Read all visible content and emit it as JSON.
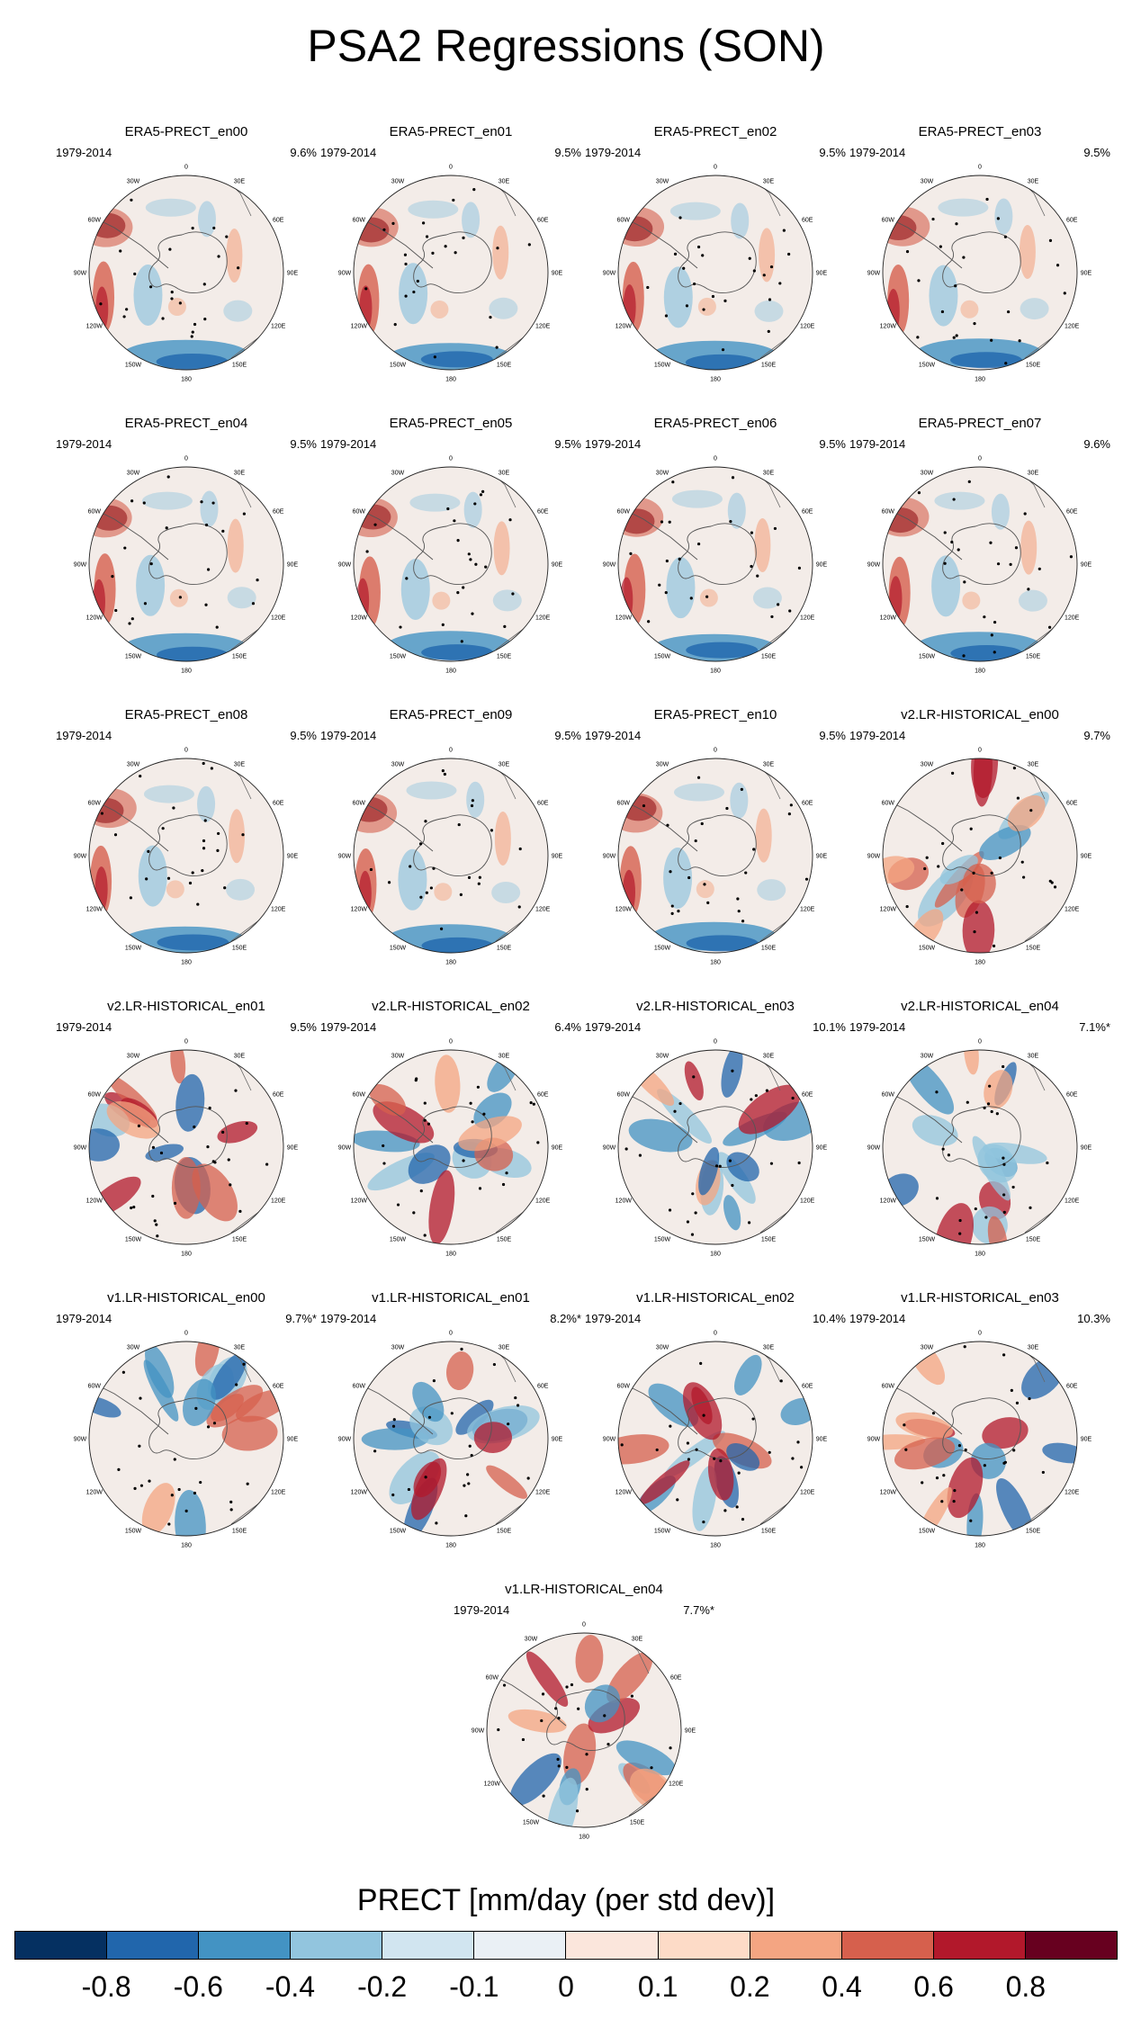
{
  "title": "PSA2 Regressions (SON)",
  "period": "1979-2014",
  "longitude_labels": [
    "0",
    "30E",
    "60E",
    "90E",
    "120E",
    "150E",
    "180",
    "150W",
    "120W",
    "90W",
    "60W",
    "30W"
  ],
  "panels": [
    {
      "title": "ERA5-PRECT_en00",
      "pct": "9.6%",
      "family": "era5"
    },
    {
      "title": "ERA5-PRECT_en01",
      "pct": "9.5%",
      "family": "era5"
    },
    {
      "title": "ERA5-PRECT_en02",
      "pct": "9.5%",
      "family": "era5"
    },
    {
      "title": "ERA5-PRECT_en03",
      "pct": "9.5%",
      "family": "era5"
    },
    {
      "title": "ERA5-PRECT_en04",
      "pct": "9.5%",
      "family": "era5"
    },
    {
      "title": "ERA5-PRECT_en05",
      "pct": "9.5%",
      "family": "era5"
    },
    {
      "title": "ERA5-PRECT_en06",
      "pct": "9.5%",
      "family": "era5"
    },
    {
      "title": "ERA5-PRECT_en07",
      "pct": "9.6%",
      "family": "era5"
    },
    {
      "title": "ERA5-PRECT_en08",
      "pct": "9.5%",
      "family": "era5"
    },
    {
      "title": "ERA5-PRECT_en09",
      "pct": "9.5%",
      "family": "era5"
    },
    {
      "title": "ERA5-PRECT_en10",
      "pct": "9.5%",
      "family": "era5"
    },
    {
      "title": "v2.LR-HISTORICAL_en00",
      "pct": "9.7%",
      "family": "model"
    },
    {
      "title": "v2.LR-HISTORICAL_en01",
      "pct": "9.5%",
      "family": "model"
    },
    {
      "title": "v2.LR-HISTORICAL_en02",
      "pct": "6.4%",
      "family": "model"
    },
    {
      "title": "v2.LR-HISTORICAL_en03",
      "pct": "10.1%",
      "family": "model"
    },
    {
      "title": "v2.LR-HISTORICAL_en04",
      "pct": "7.1%*",
      "family": "model"
    },
    {
      "title": "v1.LR-HISTORICAL_en00",
      "pct": "9.7%*",
      "family": "model"
    },
    {
      "title": "v1.LR-HISTORICAL_en01",
      "pct": "8.2%*",
      "family": "model"
    },
    {
      "title": "v1.LR-HISTORICAL_en02",
      "pct": "10.4%",
      "family": "model"
    },
    {
      "title": "v1.LR-HISTORICAL_en03",
      "pct": "10.3%",
      "family": "model"
    },
    {
      "title": "v1.LR-HISTORICAL_en04",
      "pct": "7.7%*",
      "family": "model"
    }
  ],
  "colorbar": {
    "title": "PRECT [mm/day (per std dev)]",
    "colors": [
      "#053061",
      "#2166ac",
      "#4393c3",
      "#92c5de",
      "#d1e5f0",
      "#eaf0f5",
      "#fbe6dc",
      "#fddbc7",
      "#f4a582",
      "#d6604d",
      "#b2182b",
      "#67001f"
    ],
    "ticks": [
      "-0.8",
      "-0.6",
      "-0.4",
      "-0.2",
      "-0.1",
      "0",
      "0.1",
      "0.2",
      "0.4",
      "0.6",
      "0.8"
    ]
  }
}
